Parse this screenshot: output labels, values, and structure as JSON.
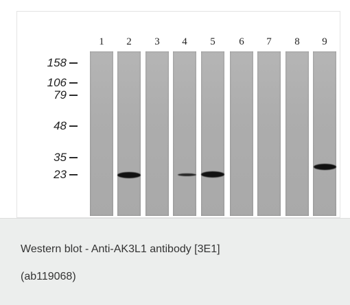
{
  "figure": {
    "lane_labels": [
      "1",
      "2",
      "3",
      "4",
      "5",
      "6",
      "7",
      "8",
      "9"
    ],
    "mw_markers": [
      "158",
      "106",
      "79",
      "48",
      "35",
      "23"
    ],
    "bands": [
      {
        "lane": "2",
        "marker_near": "23",
        "intensity": "strong"
      },
      {
        "lane": "4",
        "marker_near": "23",
        "intensity": "weak"
      },
      {
        "lane": "5",
        "marker_near": "23",
        "intensity": "strong"
      },
      {
        "lane": "9",
        "marker_near": "23",
        "intensity": "strong"
      }
    ]
  },
  "caption": {
    "line1": "Western blot - Anti-AK3L1 antibody [3E1]",
    "line2": "(ab119068)"
  }
}
